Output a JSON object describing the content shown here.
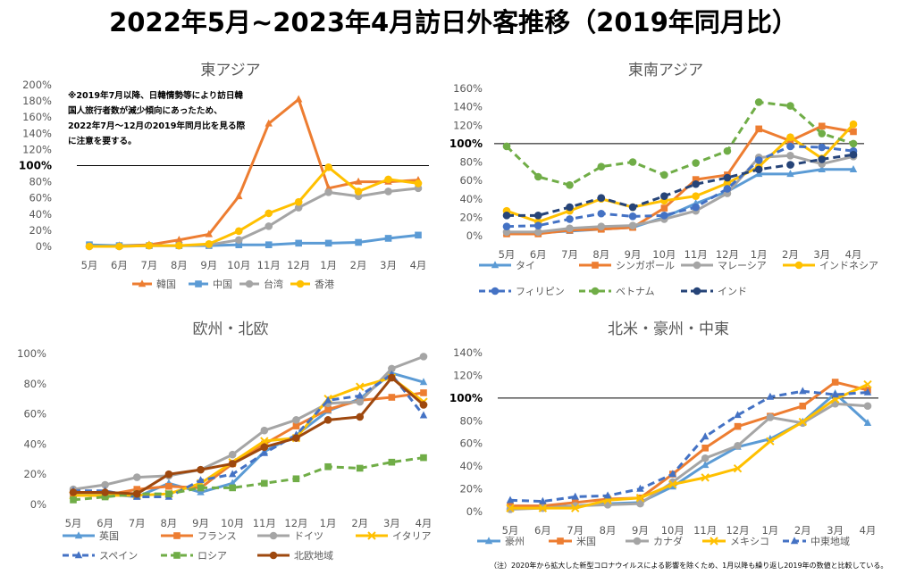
{
  "page_title": "2022年5月~2023年4月訪日外客推移（2019年同月比）",
  "footnote": "（注）2020年から拡大した新型コロナウイルスによる影響を除くため、1月以降も繰り返し2019年の数値と比較している。",
  "chart_data": [
    {
      "id": "east-asia",
      "type": "line",
      "title": "東アジア",
      "categories": [
        "5月",
        "6月",
        "7月",
        "8月",
        "9月",
        "10月",
        "11月",
        "12月",
        "1月",
        "2月",
        "3月",
        "4月"
      ],
      "y_ticks": [
        "0%",
        "20%",
        "40%",
        "60%",
        "80%",
        "100%",
        "120%",
        "140%",
        "160%",
        "180%",
        "200%"
      ],
      "ylim": [
        0,
        200
      ],
      "reference_line": 100,
      "bold_tick": "100%",
      "grid": false,
      "legend_position": "bottom",
      "annotation": [
        "※2019年7月以降、日韓情勢等により訪日韓",
        "国人旅行者数が減少傾向にあったため、",
        "2022年7月～12月の2019年同月比を見る際",
        "に注意を要する。"
      ],
      "series": [
        {
          "name": "韓国",
          "color": "#ED7D31",
          "dash": "solid",
          "marker": "triangle",
          "values": [
            1,
            1,
            2,
            8,
            15,
            62,
            152,
            182,
            72,
            80,
            80,
            82
          ]
        },
        {
          "name": "中国",
          "color": "#5B9BD5",
          "dash": "solid",
          "marker": "square",
          "values": [
            2,
            1,
            1,
            1,
            1,
            2,
            2,
            4,
            4,
            5,
            10,
            14
          ]
        },
        {
          "name": "台湾",
          "color": "#A5A5A5",
          "dash": "solid",
          "marker": "circle",
          "values": [
            0,
            0,
            1,
            1,
            2,
            8,
            25,
            48,
            67,
            62,
            68,
            72
          ]
        },
        {
          "name": "香港",
          "color": "#FFC000",
          "dash": "solid",
          "marker": "circle",
          "values": [
            0,
            0,
            1,
            1,
            3,
            19,
            41,
            55,
            98,
            68,
            83,
            78
          ]
        }
      ]
    },
    {
      "id": "southeast-asia",
      "type": "line",
      "title": "東南アジア",
      "categories": [
        "5月",
        "6月",
        "7月",
        "8月",
        "9月",
        "10月",
        "11月",
        "12月",
        "1月",
        "2月",
        "3月",
        "4月"
      ],
      "y_ticks": [
        "0%",
        "20%",
        "40%",
        "60%",
        "80%",
        "100%",
        "120%",
        "140%",
        "160%"
      ],
      "ylim": [
        0,
        160
      ],
      "reference_line": 100,
      "bold_tick": "100%",
      "grid": false,
      "legend_position": "bottom",
      "series": [
        {
          "name": "タイ",
          "color": "#5B9BD5",
          "dash": "solid",
          "marker": "triangle",
          "values": [
            3,
            3,
            5,
            7,
            9,
            20,
            35,
            48,
            67,
            67,
            72,
            72
          ]
        },
        {
          "name": "シンガポール",
          "color": "#ED7D31",
          "dash": "solid",
          "marker": "square",
          "values": [
            2,
            2,
            6,
            7,
            9,
            30,
            61,
            66,
            116,
            103,
            119,
            113
          ]
        },
        {
          "name": "マレーシア",
          "color": "#A5A5A5",
          "dash": "solid",
          "marker": "circle",
          "values": [
            4,
            4,
            8,
            10,
            11,
            18,
            27,
            46,
            85,
            87,
            78,
            86
          ]
        },
        {
          "name": "インドネシア",
          "color": "#FFC000",
          "dash": "solid",
          "marker": "circle",
          "values": [
            27,
            15,
            27,
            40,
            31,
            38,
            43,
            57,
            75,
            107,
            84,
            121
          ]
        },
        {
          "name": "フィリピン",
          "color": "#4472C4",
          "dash": "dash",
          "marker": "circle",
          "values": [
            10,
            11,
            18,
            24,
            21,
            22,
            31,
            51,
            82,
            97,
            96,
            92
          ]
        },
        {
          "name": "ベトナム",
          "color": "#70AD47",
          "dash": "dash",
          "marker": "circle",
          "values": [
            97,
            64,
            55,
            75,
            80,
            66,
            79,
            92,
            145,
            141,
            111,
            100
          ]
        },
        {
          "name": "インド",
          "color": "#264478",
          "dash": "dash",
          "marker": "circle",
          "values": [
            22,
            22,
            31,
            41,
            31,
            43,
            56,
            63,
            72,
            77,
            83,
            88
          ]
        }
      ]
    },
    {
      "id": "europe",
      "type": "line",
      "title": "欧州・北欧",
      "categories": [
        "5月",
        "6月",
        "7月",
        "8月",
        "9月",
        "10月",
        "11月",
        "12月",
        "1月",
        "2月",
        "3月",
        "4月"
      ],
      "y_ticks": [
        "0%",
        "20%",
        "40%",
        "60%",
        "80%",
        "100%"
      ],
      "ylim": [
        0,
        100
      ],
      "grid": false,
      "legend_position": "bottom",
      "series": [
        {
          "name": "英国",
          "color": "#5B9BD5",
          "dash": "solid",
          "marker": "triangle",
          "values": [
            7,
            7,
            5,
            14,
            8,
            14,
            35,
            46,
            62,
            70,
            87,
            81
          ]
        },
        {
          "name": "フランス",
          "color": "#ED7D31",
          "dash": "solid",
          "marker": "square",
          "values": [
            6,
            6,
            10,
            12,
            11,
            27,
            40,
            52,
            63,
            69,
            71,
            74
          ]
        },
        {
          "name": "ドイツ",
          "color": "#A5A5A5",
          "dash": "solid",
          "marker": "circle",
          "values": [
            10,
            13,
            18,
            19,
            23,
            33,
            49,
            56,
            67,
            68,
            90,
            98
          ]
        },
        {
          "name": "イタリア",
          "color": "#FFC000",
          "dash": "solid",
          "marker": "cross",
          "values": [
            6,
            6,
            6,
            7,
            14,
            28,
            42,
            44,
            70,
            78,
            84,
            68
          ]
        },
        {
          "name": "スペイン",
          "color": "#4472C4",
          "dash": "dash",
          "marker": "triangle",
          "values": [
            9,
            9,
            5,
            5,
            16,
            20,
            34,
            46,
            69,
            72,
            86,
            59
          ]
        },
        {
          "name": "ロシア",
          "color": "#70AD47",
          "dash": "dash",
          "marker": "square",
          "values": [
            3,
            5,
            7,
            7,
            11,
            11,
            14,
            17,
            25,
            24,
            28,
            31
          ]
        },
        {
          "name": "北欧地域",
          "color": "#9E480E",
          "dash": "solid",
          "marker": "circle",
          "values": [
            8,
            8,
            7,
            20,
            23,
            27,
            38,
            44,
            56,
            58,
            84,
            66
          ]
        }
      ]
    },
    {
      "id": "americas-oceania-mideast",
      "type": "line",
      "title": "北米・豪州・中東",
      "categories": [
        "5月",
        "6月",
        "7月",
        "8月",
        "9月",
        "10月",
        "11月",
        "12月",
        "1月",
        "2月",
        "3月",
        "4月"
      ],
      "y_ticks": [
        "0%",
        "20%",
        "40%",
        "60%",
        "80%",
        "100%",
        "120%",
        "140%"
      ],
      "ylim": [
        0,
        140
      ],
      "reference_line": 100,
      "bold_tick": "100%",
      "grid": false,
      "legend_position": "bottom",
      "series": [
        {
          "name": "豪州",
          "color": "#5B9BD5",
          "dash": "solid",
          "marker": "triangle",
          "values": [
            4,
            4,
            5,
            7,
            8,
            22,
            41,
            57,
            64,
            79,
            104,
            78
          ]
        },
        {
          "name": "米国",
          "color": "#ED7D31",
          "dash": "solid",
          "marker": "square",
          "values": [
            5,
            5,
            8,
            11,
            12,
            33,
            56,
            75,
            84,
            93,
            114,
            107
          ]
        },
        {
          "name": "カナダ",
          "color": "#A5A5A5",
          "dash": "solid",
          "marker": "circle",
          "values": [
            2,
            3,
            5,
            6,
            7,
            26,
            47,
            58,
            83,
            78,
            95,
            93
          ]
        },
        {
          "name": "メキシコ",
          "color": "#FFC000",
          "dash": "solid",
          "marker": "cross",
          "values": [
            3,
            3,
            3,
            10,
            12,
            24,
            30,
            38,
            62,
            79,
            99,
            112
          ]
        },
        {
          "name": "中東地域",
          "color": "#4472C4",
          "dash": "dash",
          "marker": "triangle",
          "values": [
            10,
            9,
            13,
            14,
            20,
            33,
            66,
            85,
            101,
            106,
            103,
            105
          ]
        }
      ]
    }
  ]
}
